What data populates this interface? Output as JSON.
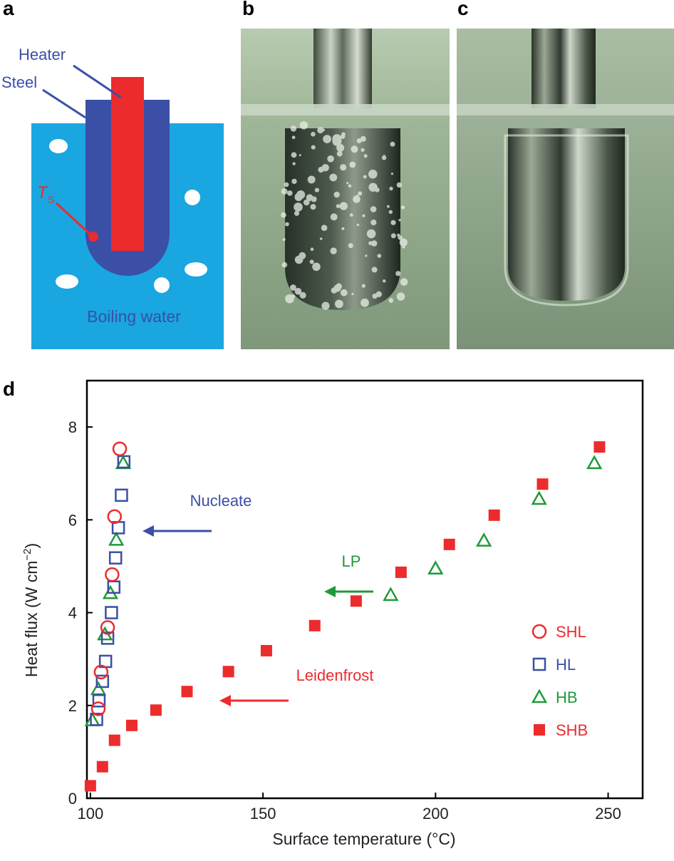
{
  "panels": {
    "a": {
      "letter": "a",
      "labels": {
        "heater": "Heater",
        "steel": "Steel",
        "ts_main": "T",
        "ts_sub": "S",
        "water": "Boiling water"
      },
      "colors": {
        "water": "#1aa6e0",
        "steel": "#3b4fa6",
        "heater": "#ec2b2d",
        "bubble": "#ffffff"
      }
    },
    "b": {
      "letter": "b"
    },
    "c": {
      "letter": "c"
    },
    "d": {
      "letter": "d"
    }
  },
  "chart_data": {
    "type": "scatter",
    "xlabel": "Surface temperature (°C)",
    "ylabel_main": "Heat flux (W cm",
    "ylabel_sup": "−2",
    "ylabel_end": ")",
    "xlim": [
      99,
      260
    ],
    "ylim": [
      0,
      9
    ],
    "xticks": [
      100,
      150,
      200,
      250
    ],
    "yticks": [
      0,
      2,
      4,
      6,
      8
    ],
    "legend_position": "right",
    "series": [
      {
        "name": "SHL",
        "marker": "circle-open",
        "color": "#ec2b2d",
        "points": [
          [
            102.3,
            1.93
          ],
          [
            103.1,
            2.72
          ],
          [
            105.0,
            3.68
          ],
          [
            106.3,
            4.82
          ],
          [
            107.0,
            6.07
          ],
          [
            108.5,
            7.53
          ]
        ]
      },
      {
        "name": "HL",
        "marker": "square-open",
        "color": "#3b4fa6",
        "points": [
          [
            101.8,
            1.7
          ],
          [
            102.5,
            2.1
          ],
          [
            103.5,
            2.52
          ],
          [
            104.4,
            2.95
          ],
          [
            105.0,
            3.45
          ],
          [
            106.1,
            4.0
          ],
          [
            106.8,
            4.55
          ],
          [
            107.3,
            5.18
          ],
          [
            108.1,
            5.83
          ],
          [
            109.0,
            6.53
          ],
          [
            109.7,
            7.25
          ]
        ]
      },
      {
        "name": "HB",
        "marker": "triangle-open",
        "color": "#1f9a3a",
        "points": [
          [
            100.6,
            1.68
          ],
          [
            102.3,
            2.35
          ],
          [
            104.2,
            3.53
          ],
          [
            105.8,
            4.42
          ],
          [
            107.5,
            5.57
          ],
          [
            109.5,
            7.22
          ],
          [
            187.0,
            4.38
          ],
          [
            200.0,
            4.95
          ],
          [
            214.0,
            5.55
          ],
          [
            230.0,
            6.45
          ],
          [
            246.0,
            7.22
          ]
        ]
      },
      {
        "name": "SHB",
        "marker": "square-filled",
        "color": "#ec2b2d",
        "points": [
          [
            100.0,
            0.27
          ],
          [
            103.5,
            0.68
          ],
          [
            107.0,
            1.25
          ],
          [
            112.0,
            1.57
          ],
          [
            119.0,
            1.9
          ],
          [
            128.0,
            2.3
          ],
          [
            140.0,
            2.73
          ],
          [
            151.0,
            3.18
          ],
          [
            165.0,
            3.72
          ],
          [
            177.0,
            4.25
          ],
          [
            190.0,
            4.87
          ],
          [
            204.0,
            5.47
          ],
          [
            217.0,
            6.1
          ],
          [
            231.0,
            6.77
          ],
          [
            247.5,
            7.57
          ]
        ]
      }
    ],
    "annotations": [
      {
        "text": "Nucleate",
        "color": "#3b4fa6"
      },
      {
        "text": "LP",
        "color": "#1f9a3a"
      },
      {
        "text": "Leidenfrost",
        "color": "#ec2b2d"
      }
    ]
  }
}
